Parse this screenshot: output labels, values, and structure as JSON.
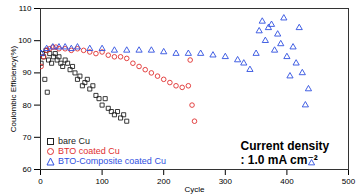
{
  "chart_data": {
    "type": "scatter",
    "xlabel": "Cycle",
    "ylabel": "Coulombic Efficiency(%)",
    "xlim": [
      0,
      500
    ],
    "xticks": [
      0,
      100,
      200,
      300,
      400,
      500
    ],
    "ylim": [
      60,
      110
    ],
    "yticks": [
      60,
      70,
      80,
      90,
      100,
      110
    ],
    "grid": false,
    "legend": "lower left",
    "annotations": [
      "Current density",
      ": 1.0 mA cm⁻²"
    ],
    "series": [
      {
        "name": "bare Cu",
        "color": "#222222",
        "marker": "square",
        "x": [
          1,
          3,
          5,
          7,
          9,
          11,
          13,
          15,
          18,
          21,
          24,
          27,
          30,
          33,
          36,
          40,
          44,
          48,
          52,
          56,
          60,
          64,
          68,
          72,
          76,
          80,
          85,
          90,
          95,
          100,
          105,
          110,
          115,
          120,
          125,
          130,
          135,
          140
        ],
        "values": [
          93,
          96,
          95,
          88,
          97,
          84,
          94,
          96,
          93,
          95,
          96,
          94,
          95,
          93,
          92,
          94,
          93,
          91,
          92,
          90,
          88,
          89,
          86,
          87,
          88,
          85,
          86,
          83,
          82,
          80,
          82,
          79,
          78,
          77,
          78,
          76,
          77,
          75
        ]
      },
      {
        "name": "BTO coated Cu",
        "color": "#e03030",
        "marker": "circle",
        "x": [
          1,
          5,
          10,
          15,
          20,
          25,
          30,
          40,
          50,
          60,
          70,
          80,
          90,
          100,
          110,
          120,
          130,
          140,
          150,
          160,
          170,
          180,
          190,
          200,
          210,
          220,
          230,
          240,
          243,
          246,
          250
        ],
        "values": [
          92,
          95,
          97,
          97.5,
          98,
          98,
          97.5,
          97.5,
          97,
          97.5,
          97,
          96.5,
          96,
          96.5,
          95.5,
          95,
          95,
          94.5,
          93,
          92,
          91,
          90,
          89,
          88,
          87,
          86,
          85.5,
          86,
          94,
          80,
          75
        ]
      },
      {
        "name": "BTO-Composite coated Cu",
        "color": "#3050e0",
        "marker": "triangle",
        "x": [
          1,
          10,
          20,
          30,
          40,
          50,
          60,
          80,
          100,
          120,
          140,
          160,
          180,
          200,
          220,
          240,
          260,
          280,
          300,
          320,
          330,
          340,
          350,
          355,
          360,
          365,
          370,
          375,
          380,
          385,
          390,
          395,
          400,
          405,
          410,
          415,
          420,
          425,
          430,
          435,
          440
        ],
        "values": [
          96,
          97.5,
          98,
          98,
          98,
          97.5,
          98,
          97.5,
          97.5,
          97,
          97,
          97,
          97,
          96.5,
          96,
          96,
          96,
          95.5,
          95,
          94,
          93,
          91,
          96,
          103,
          106,
          100,
          104,
          105,
          97,
          102,
          99,
          107,
          95,
          89,
          98,
          93,
          104,
          90,
          80,
          85,
          62
        ]
      }
    ]
  }
}
